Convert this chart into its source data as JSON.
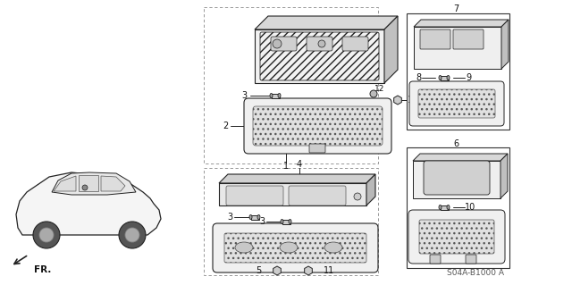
{
  "bg_color": "#ffffff",
  "diagram_code": "S04A-B1000 A",
  "fr_label": "FR.",
  "fig_width": 6.4,
  "fig_height": 3.19,
  "line_color": "#222222",
  "light_gray": "#c8c8c8",
  "mid_gray": "#aaaaaa",
  "dark_gray": "#666666"
}
